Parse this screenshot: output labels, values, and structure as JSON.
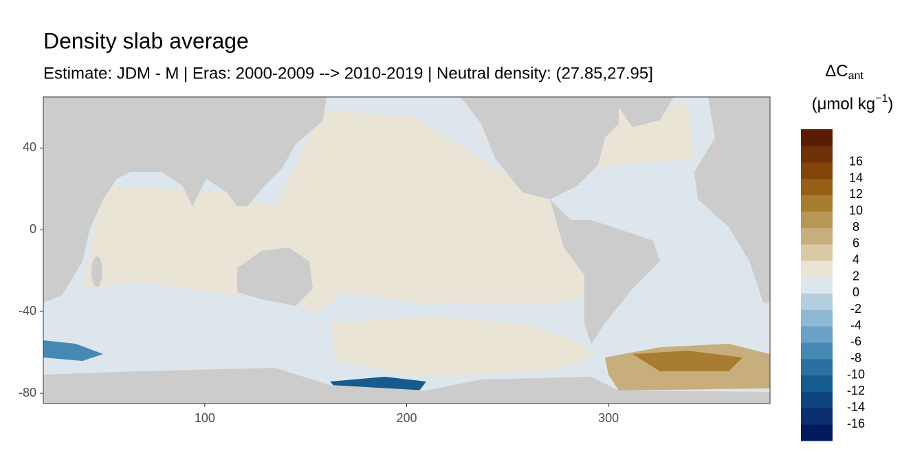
{
  "chart_data": {
    "type": "map",
    "title": "Density slab average",
    "subtitle": "Estimate: JDM - M | Eras: 2000-2009 --> 2010-2019 | Neutral density: (27.85,27.95]",
    "xlim": [
      20,
      380
    ],
    "xticks": [
      100,
      200,
      300
    ],
    "ylim": [
      -85,
      65
    ],
    "yticks": [
      40,
      0,
      -40,
      -80
    ],
    "legend": {
      "title": "ΔC",
      "title_sub": "ant",
      "unit": "(μmol kg",
      "unit_sup": "−1",
      "unit_end": ")",
      "labels": [
        -16,
        -14,
        -12,
        -10,
        -8,
        -6,
        -4,
        -2,
        0,
        2,
        4,
        6,
        8,
        10,
        12,
        14,
        16
      ],
      "colors": [
        "#021a5c",
        "#0b2f6e",
        "#0f437f",
        "#165b8e",
        "#2a71a2",
        "#4789b5",
        "#6aa1c6",
        "#8fb8d3",
        "#b5cfe0",
        "#dce6ec",
        "#eae4d6",
        "#dccaa6",
        "#c8ae7c",
        "#b89656",
        "#a87d30",
        "#956015",
        "#82450a",
        "#6e3006",
        "#5a1b03"
      ]
    }
  }
}
